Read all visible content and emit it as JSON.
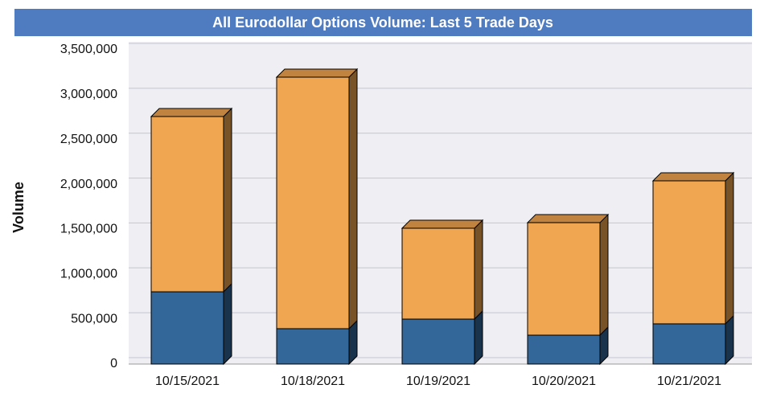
{
  "chart_data": {
    "type": "bar",
    "stacked": true,
    "title": "All Eurodollar Options Volume: Last 5 Trade Days",
    "y_label": "Volume",
    "categories": [
      "10/15/2021",
      "10/18/2021",
      "10/19/2021",
      "10/20/2021",
      "10/21/2021"
    ],
    "series": [
      {
        "color": "#336699",
        "values": [
          805000,
          394000,
          501000,
          322000,
          448000
        ]
      },
      {
        "color": "#f0a550",
        "values": [
          1952000,
          2802000,
          1012000,
          1253000,
          1593000
        ]
      }
    ],
    "ylim": [
      0,
      3500000
    ],
    "yticks": [
      0,
      {
        "value": 500000,
        "label": "500,000"
      },
      {
        "value": 1000000,
        "label": "1,000,000"
      },
      {
        "value": 1500000,
        "label": "1,500,000"
      },
      {
        "value": 2000000,
        "label": "2,000,000"
      },
      {
        "value": 2500000,
        "label": "2,500,000"
      },
      {
        "value": 3000000,
        "label": "3,000,000"
      },
      {
        "value": 3500000,
        "label": "3,500,000"
      }
    ],
    "grid": true
  }
}
